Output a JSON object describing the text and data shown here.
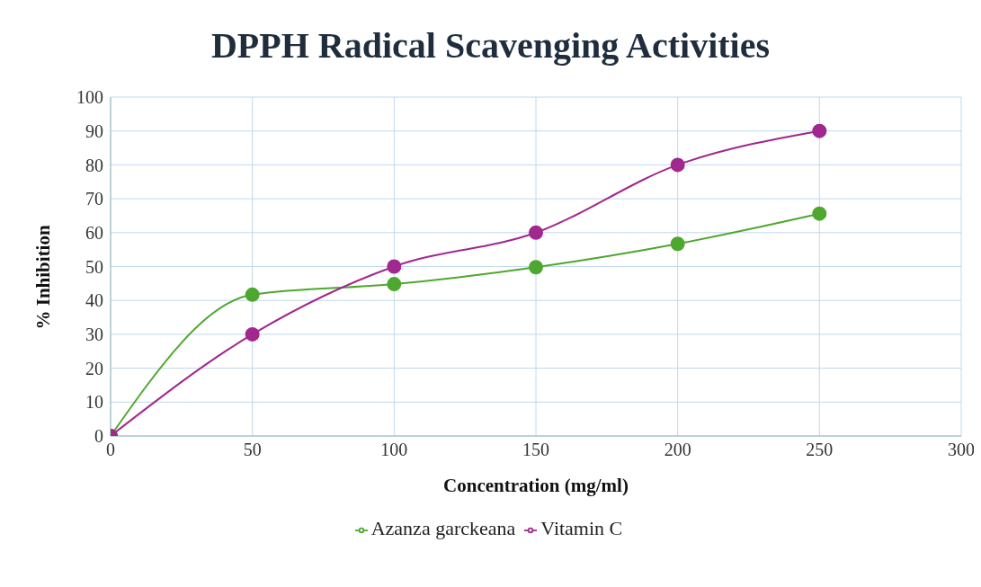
{
  "chart_data": {
    "type": "line",
    "title": "DPPH Radical Scavenging Activities",
    "xlabel": "Concentration (mg/ml)",
    "ylabel": "% Inhibition",
    "x": [
      0,
      50,
      100,
      150,
      200,
      250
    ],
    "series": [
      {
        "name": "Azanza garckeana",
        "color": "#4ea72e",
        "values": [
          0,
          41.7,
          44.8,
          49.8,
          56.7,
          65.6
        ]
      },
      {
        "name": "Vitamin C",
        "color": "#a0288e",
        "values": [
          0,
          30,
          50,
          60,
          80,
          90
        ]
      }
    ],
    "xlim": [
      0,
      300
    ],
    "xticks": [
      0,
      50,
      100,
      150,
      200,
      250,
      300
    ],
    "ylim": [
      0,
      100
    ],
    "yticks": [
      0,
      10,
      20,
      30,
      40,
      50,
      60,
      70,
      80,
      90,
      100
    ],
    "grid": true,
    "legend": "bottom",
    "marker": "circle",
    "line_style": "solid"
  }
}
